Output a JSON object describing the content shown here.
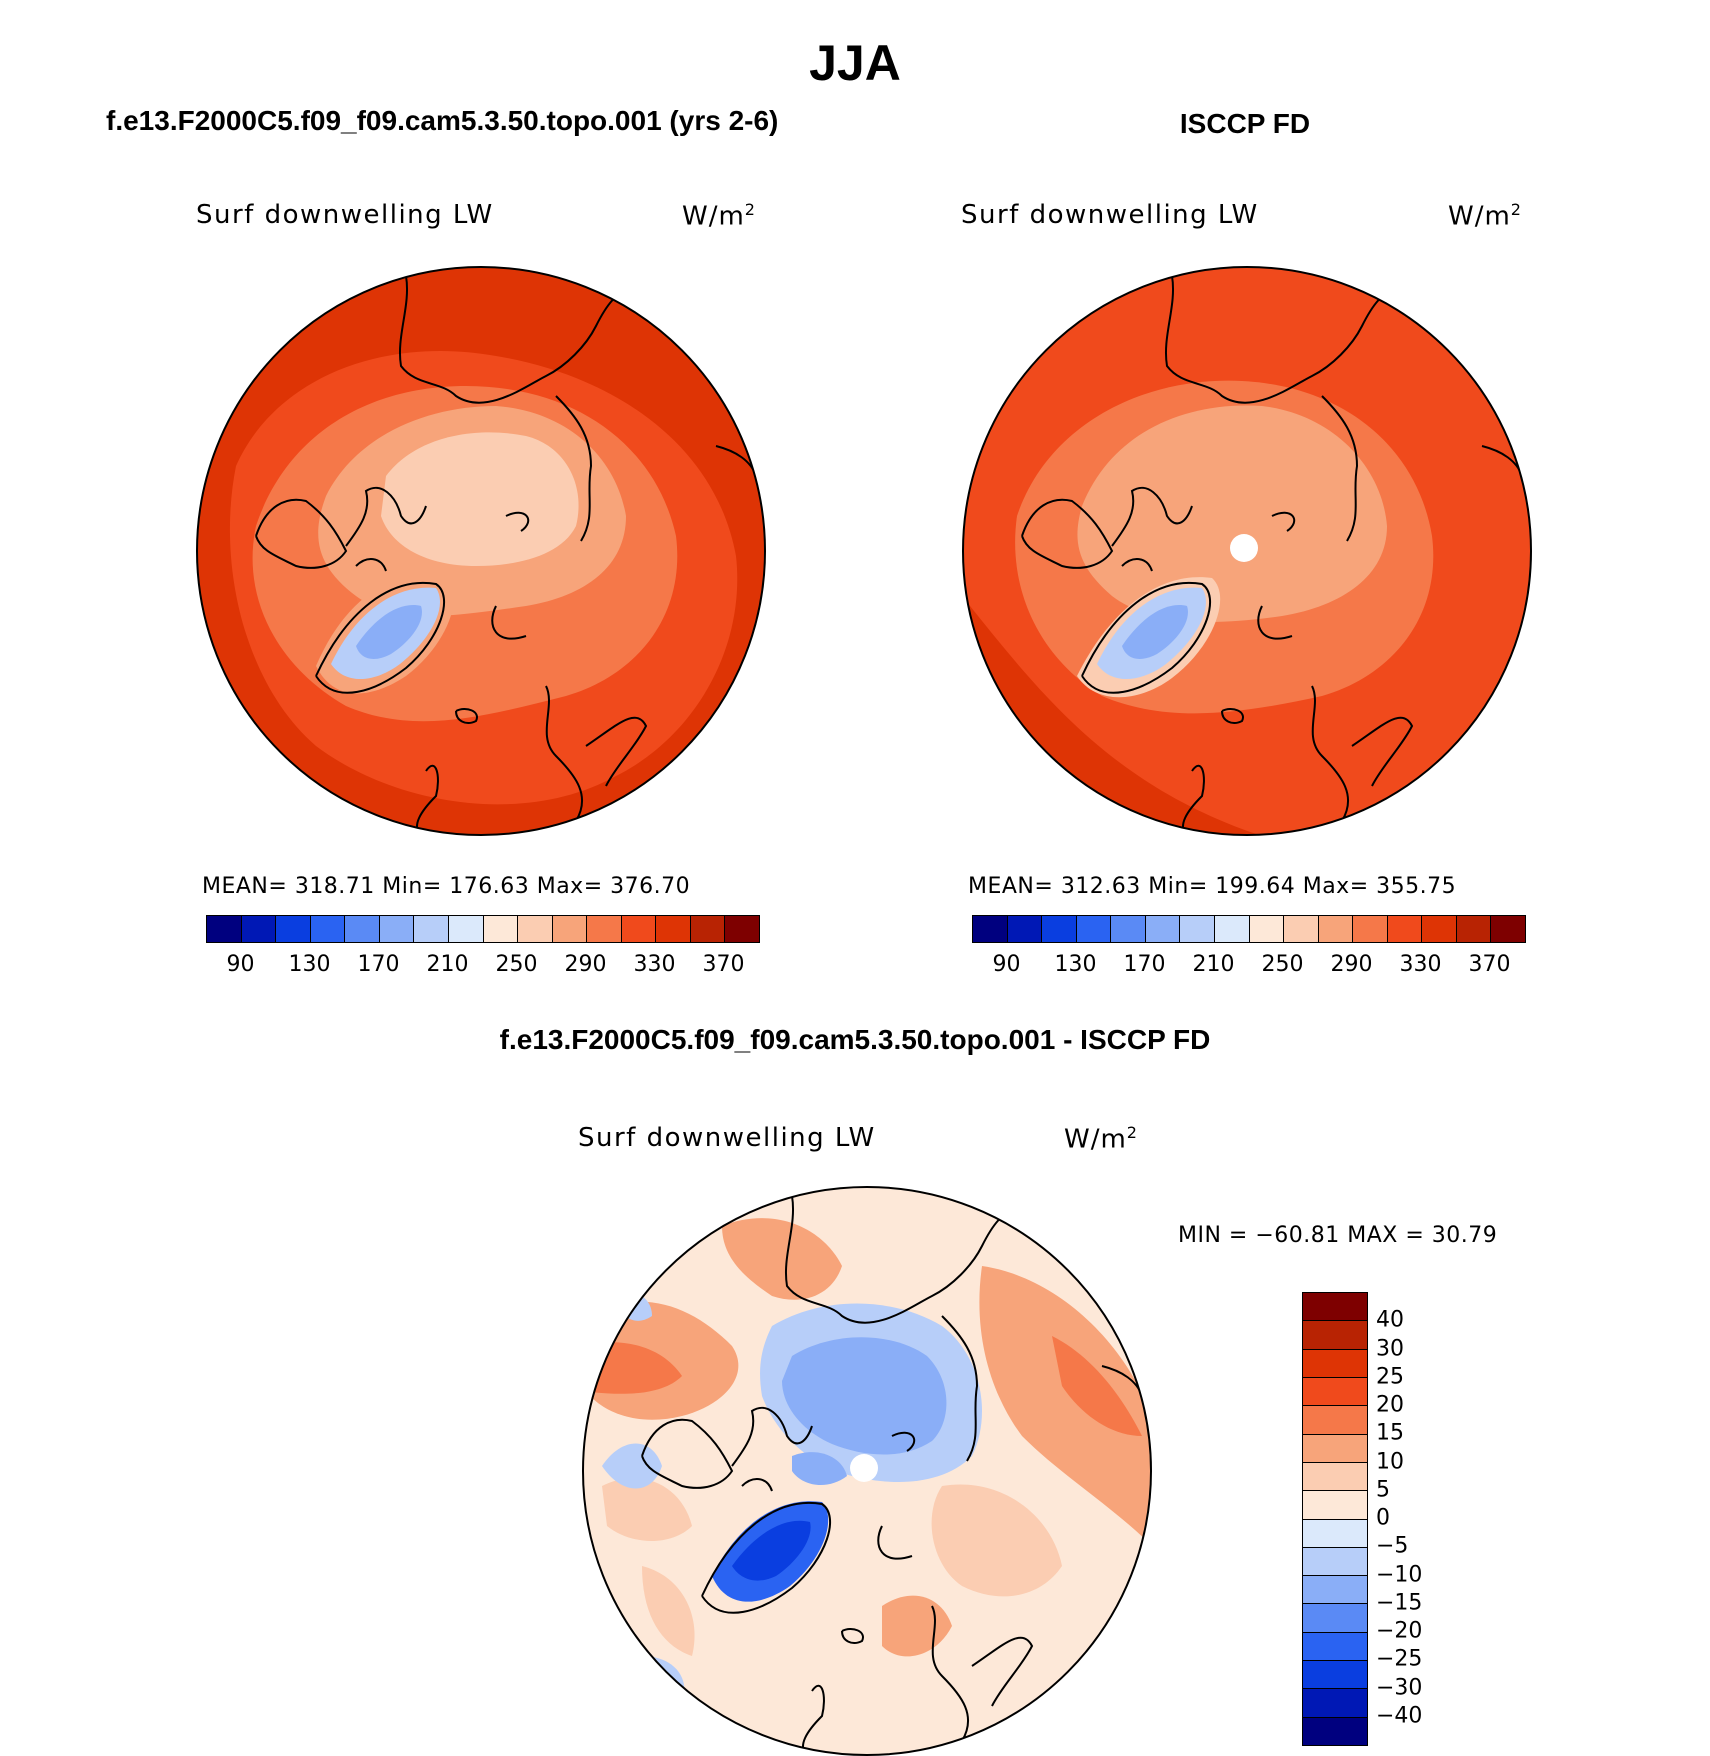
{
  "main_title": "JJA",
  "panels": [
    {
      "title": "f.e13.F2000C5.f09_f09.cam5.3.50.topo.001 (yrs 2-6)",
      "variable": "Surf downwelling LW",
      "units_base": "W/m",
      "units_sup": "2",
      "stats": "MEAN= 318.71   Min= 176.63   Max= 376.70"
    },
    {
      "title": "ISCCP FD",
      "variable": "Surf downwelling LW",
      "units_base": "W/m",
      "units_sup": "2",
      "stats": "MEAN= 312.63   Min= 199.64   Max= 355.75"
    },
    {
      "title": "f.e13.F2000C5.f09_f09.cam5.3.50.topo.001 - ISCCP FD",
      "variable": "Surf downwelling LW",
      "units_base": "W/m",
      "units_sup": "2",
      "stats": "MIN = −60.81  MAX =   30.79"
    }
  ],
  "abs_colorbar": {
    "colors": [
      "#00007f",
      "#0018b5",
      "#0a3ee0",
      "#2a63f2",
      "#5a8af5",
      "#8aaef7",
      "#b7cef9",
      "#dbe9fb",
      "#fde8d8",
      "#fbcdb2",
      "#f7a47a",
      "#f57849",
      "#f04a1c",
      "#de3405",
      "#b82303",
      "#7e0000"
    ],
    "tick_labels": [
      "90",
      "130",
      "170",
      "210",
      "250",
      "290",
      "330",
      "370"
    ]
  },
  "diff_colorbar": {
    "colors": [
      "#7e0000",
      "#b82303",
      "#de3405",
      "#f04a1c",
      "#f57849",
      "#f7a47a",
      "#fbcdb2",
      "#fde8d8",
      "#dbe9fb",
      "#b7cef9",
      "#8aaef7",
      "#5a8af5",
      "#2a63f2",
      "#0a3ee0",
      "#0018b5",
      "#00007f"
    ],
    "tick_labels": [
      "40",
      "30",
      "25",
      "20",
      "15",
      "10",
      "5",
      "0",
      "−5",
      "−10",
      "−15",
      "−20",
      "−25",
      "−30",
      "−40"
    ]
  },
  "map_colors": {
    "outer": "#de3405",
    "mid": "#f04a1c",
    "ring": "#f57849",
    "inner": "#f7a47a",
    "pole": "#fbcdb2",
    "greenland_edge": "#b7cef9",
    "greenland_core": "#8aaef7",
    "dark_edge": "#b82303",
    "diff_base": "#fde8d8",
    "diff_warm": "#f7a47a",
    "diff_warm2": "#f57849",
    "diff_light": "#fbcdb2",
    "diff_cool": "#b7cef9",
    "diff_cool2": "#8aaef7",
    "diff_cold": "#0a3ee0",
    "diff_cold2": "#2a63f2"
  }
}
